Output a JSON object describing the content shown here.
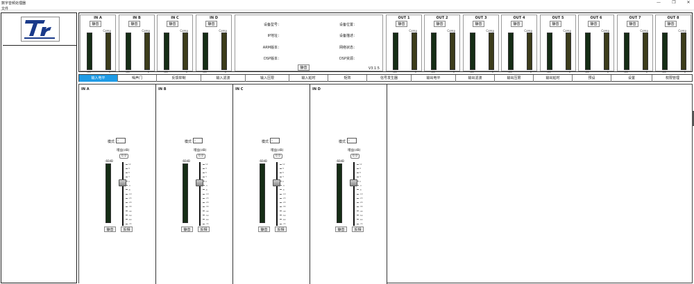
{
  "app": {
    "title": "数字音频处理器"
  },
  "menu": {
    "file": "文件"
  },
  "window_controls": {
    "minimize": "—",
    "maximize": "❐",
    "close": "✕"
  },
  "inputs": [
    {
      "name": "IN A",
      "mute": "静音",
      "comp": "Comp",
      "min": "-60",
      "max": "0"
    },
    {
      "name": "IN B",
      "mute": "静音",
      "comp": "Comp",
      "min": "-60",
      "max": "0"
    },
    {
      "name": "IN C",
      "mute": "静音",
      "comp": "Comp",
      "min": "-60",
      "max": "0"
    },
    {
      "name": "IN D",
      "mute": "静音",
      "comp": "Comp",
      "min": "-60",
      "max": "0"
    }
  ],
  "outputs": [
    {
      "name": "OUT 1",
      "mute": "静音",
      "comp": "Comp",
      "min": "-60",
      "max": "0"
    },
    {
      "name": "OUT 2",
      "mute": "静音",
      "comp": "Comp",
      "min": "-60",
      "max": "0"
    },
    {
      "name": "OUT 3",
      "mute": "静音",
      "comp": "Comp",
      "min": "-60",
      "max": "0"
    },
    {
      "name": "OUT 4",
      "mute": "静音",
      "comp": "Comp",
      "min": "-60",
      "max": "0"
    },
    {
      "name": "OUT 5",
      "mute": "静音",
      "comp": "Comp",
      "min": "-60",
      "max": "0"
    },
    {
      "name": "OUT 6",
      "mute": "静音",
      "comp": "Comp",
      "min": "-60",
      "max": "0"
    },
    {
      "name": "OUT 7",
      "mute": "静音",
      "comp": "Comp",
      "min": "-60",
      "max": "0"
    },
    {
      "name": "OUT 8",
      "mute": "静音",
      "comp": "Comp",
      "min": "-60",
      "max": "0"
    }
  ],
  "device_info": {
    "model_label": "设备型号：",
    "ip_label": "IP地址：",
    "arm_label": "ARM版本：",
    "dsp_label": "DSP版本：",
    "location_label": "设备位置：",
    "status_label": "设备描述：",
    "network_label": "网络状态：",
    "dsp_res_label": "DSP资源：",
    "mute": "静音",
    "version": "V3.1.5"
  },
  "tabs": [
    "输入电平",
    "噪声门",
    "反馈抑制",
    "输入滤波",
    "输入压限",
    "输入延时",
    "矩阵",
    "信号发生器",
    "输出电平",
    "输出滤波",
    "输出压限",
    "输出延时",
    "预设",
    "设置",
    "权限管理"
  ],
  "active_tab": 0,
  "channel_panels": [
    {
      "name": "IN A",
      "mode_label": "模式",
      "mode_value": "-",
      "gain_label": "增益(dB)",
      "gain_value": "0.0",
      "db_label": "-60dB",
      "mute": "静音",
      "invert": "反相"
    },
    {
      "name": "IN B",
      "mode_label": "模式",
      "mode_value": "-",
      "gain_label": "增益(dB)",
      "gain_value": "0.0",
      "db_label": "-60dB",
      "mute": "静音",
      "invert": "反相"
    },
    {
      "name": "IN C",
      "mode_label": "模式",
      "mode_value": "-",
      "gain_label": "增益(dB)",
      "gain_value": "0.0",
      "db_label": "-60dB",
      "mute": "静音",
      "invert": "反相"
    },
    {
      "name": "IN D",
      "mode_label": "模式",
      "mode_value": "-",
      "gain_label": "增益(dB)",
      "gain_value": "0.0",
      "db_label": "-60dB",
      "mute": "静音",
      "invert": "反相"
    }
  ],
  "fader_scale": [
    "12",
    "9",
    "6",
    "3",
    "0",
    "-3",
    "-6",
    "-10",
    "-15",
    "-20",
    "-30",
    "-40",
    "-50",
    "-60",
    "-72"
  ],
  "colors": {
    "accent": "#1e9be6",
    "meter_green": "#1e3a1e",
    "logo_blue": "#1a3a8a"
  }
}
